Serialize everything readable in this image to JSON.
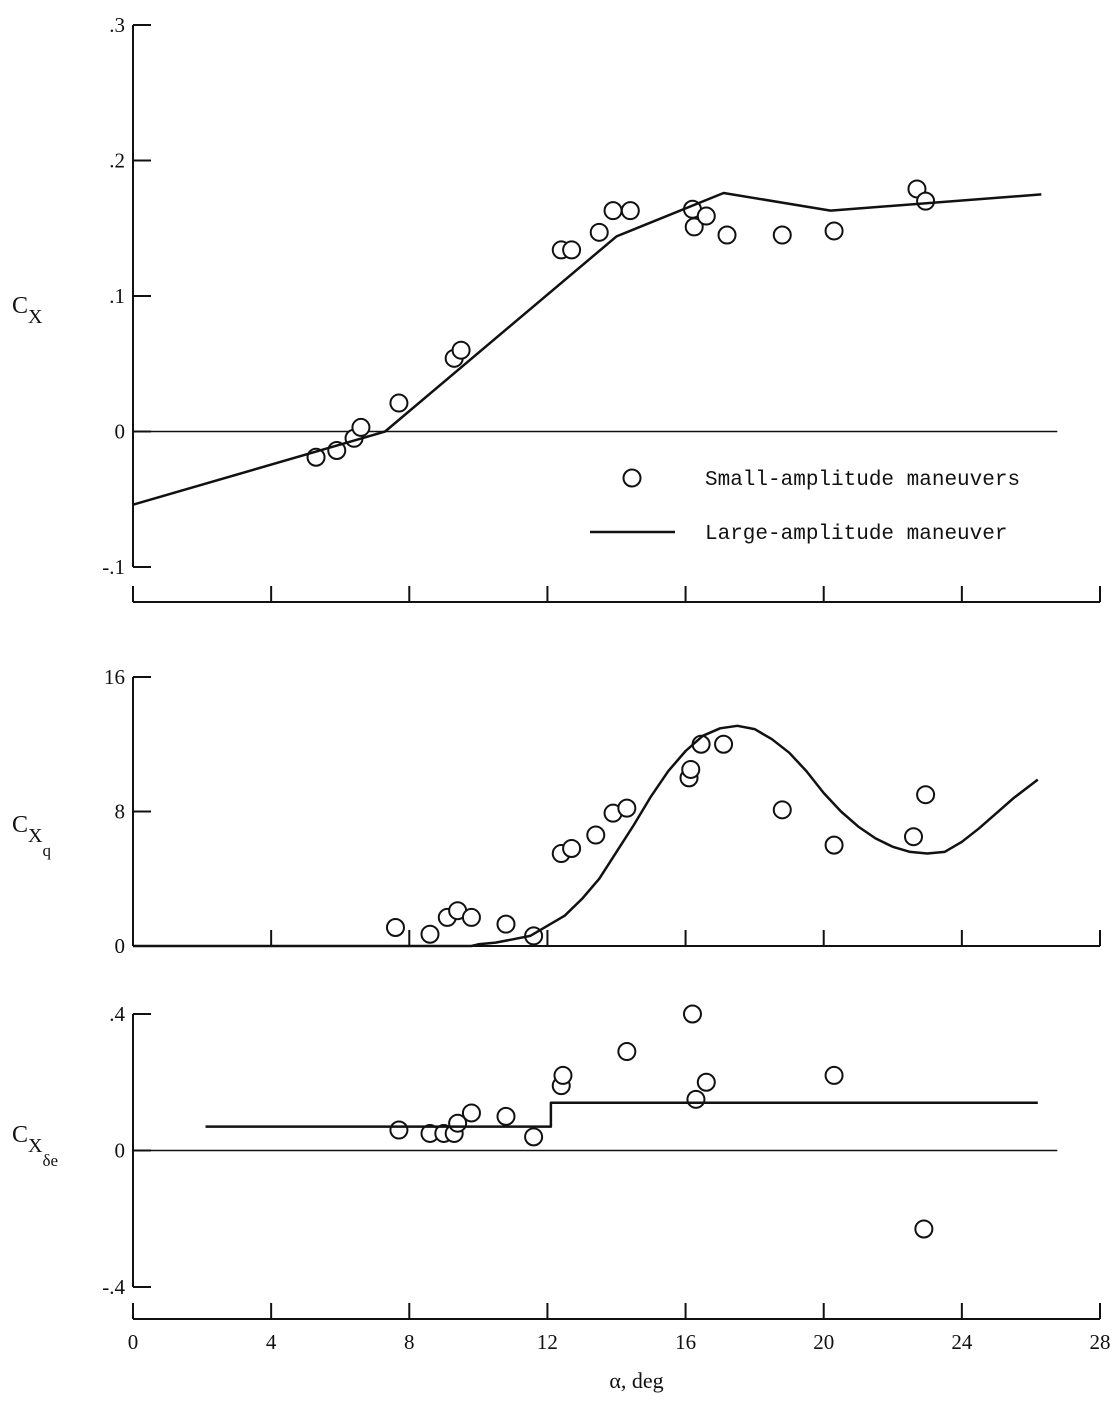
{
  "chart_data": [
    {
      "type": "line",
      "panel": "top",
      "ylabel": "C",
      "ylabel_sub": "X",
      "ylim": [
        -0.1,
        0.3
      ],
      "xlim": [
        0,
        28
      ],
      "yticks": [
        -0.1,
        0,
        0.1,
        0.2,
        0.3
      ],
      "ytick_labels": [
        "-.1",
        "0",
        ".1",
        ".2",
        ".3"
      ],
      "xticks": [
        0,
        4,
        8,
        12,
        16,
        20,
        24,
        28
      ],
      "zero_line": true,
      "legend": {
        "placement": "lower-right",
        "entries": [
          {
            "marker": "circle",
            "label": "Small-amplitude maneuvers"
          },
          {
            "marker": "line",
            "label": "Large-amplitude maneuver"
          }
        ]
      },
      "series": [
        {
          "name": "Small-amplitude maneuvers",
          "kind": "scatter",
          "x": [
            5.3,
            5.9,
            6.4,
            6.6,
            7.7,
            9.3,
            9.5,
            12.4,
            12.7,
            13.5,
            13.9,
            14.4,
            16.2,
            16.25,
            16.6,
            17.2,
            18.8,
            20.3,
            22.7,
            22.95
          ],
          "y": [
            -0.019,
            -0.014,
            -0.005,
            0.003,
            0.021,
            0.054,
            0.06,
            0.134,
            0.134,
            0.147,
            0.163,
            0.163,
            0.164,
            0.151,
            0.159,
            0.145,
            0.145,
            0.148,
            0.179,
            0.17
          ]
        },
        {
          "name": "Large-amplitude maneuver",
          "kind": "line",
          "x": [
            0,
            6.5,
            7.3,
            14.0,
            17.1,
            20.2,
            26.3
          ],
          "y": [
            -0.054,
            -0.006,
            0.0,
            0.144,
            0.176,
            0.163,
            0.175
          ]
        }
      ]
    },
    {
      "type": "line",
      "panel": "middle",
      "ylabel": "C",
      "ylabel_sub": "X",
      "ylabel_subsub": "q",
      "ylim": [
        0,
        16
      ],
      "xlim": [
        0,
        28
      ],
      "yticks": [
        0,
        8,
        16
      ],
      "ytick_labels": [
        "0",
        "8",
        "16"
      ],
      "xticks": [
        0,
        4,
        8,
        12,
        16,
        20,
        24,
        28
      ],
      "series": [
        {
          "name": "Small-amplitude maneuvers",
          "kind": "scatter",
          "x": [
            7.6,
            8.6,
            9.1,
            9.4,
            9.8,
            10.8,
            11.6,
            12.4,
            12.7,
            13.4,
            13.9,
            14.3,
            16.1,
            16.15,
            16.45,
            17.1,
            18.8,
            20.3,
            22.6,
            22.95
          ],
          "y": [
            1.1,
            0.7,
            1.7,
            2.1,
            1.7,
            1.3,
            0.6,
            5.5,
            5.8,
            6.6,
            7.9,
            8.2,
            10.0,
            10.5,
            12.0,
            12.0,
            8.1,
            6.0,
            6.5,
            9.0
          ]
        },
        {
          "name": "Large-amplitude maneuver",
          "kind": "line",
          "x": [
            0,
            9.8,
            10.0,
            10.5,
            11.0,
            11.5,
            12.0,
            12.5,
            13.0,
            13.5,
            14.0,
            14.5,
            15.0,
            15.5,
            16.0,
            16.5,
            17.0,
            17.5,
            18.0,
            18.5,
            19.0,
            19.5,
            20.0,
            20.5,
            21.0,
            21.5,
            22.0,
            22.5,
            23.0,
            23.5,
            24.0,
            24.5,
            25.0,
            25.5,
            26.2
          ],
          "y": [
            0,
            0,
            0.1,
            0.2,
            0.4,
            0.6,
            1.2,
            1.8,
            2.8,
            4.0,
            5.6,
            7.2,
            8.9,
            10.4,
            11.6,
            12.5,
            12.95,
            13.1,
            12.9,
            12.3,
            11.5,
            10.4,
            9.1,
            8.0,
            7.1,
            6.4,
            5.9,
            5.6,
            5.5,
            5.6,
            6.2,
            7.0,
            7.9,
            8.8,
            9.9
          ]
        }
      ]
    },
    {
      "type": "line",
      "panel": "bottom",
      "ylabel": "C",
      "ylabel_sub": "X",
      "ylabel_subsub": "δe",
      "ylim": [
        -0.4,
        0.4
      ],
      "xlim": [
        0,
        28
      ],
      "yticks": [
        -0.4,
        0,
        0.4
      ],
      "ytick_labels": [
        "-.4",
        "0",
        ".4"
      ],
      "xticks": [
        0,
        4,
        8,
        12,
        16,
        20,
        24,
        28
      ],
      "xtick_labels": [
        "0",
        "4",
        "8",
        "12",
        "16",
        "20",
        "24",
        "28"
      ],
      "xlabel": "α, deg",
      "zero_line": true,
      "series": [
        {
          "name": "Small-amplitude maneuvers",
          "kind": "scatter",
          "x": [
            7.7,
            8.6,
            9.0,
            9.3,
            9.4,
            9.8,
            10.8,
            11.6,
            12.4,
            12.45,
            14.3,
            16.2,
            16.3,
            16.6,
            20.3,
            22.9
          ],
          "y": [
            0.06,
            0.05,
            0.05,
            0.05,
            0.08,
            0.11,
            0.1,
            0.04,
            0.19,
            0.22,
            0.29,
            0.4,
            0.15,
            0.2,
            0.22,
            -0.23
          ]
        },
        {
          "name": "Large-amplitude maneuver",
          "kind": "line",
          "x": [
            2.1,
            12.1,
            12.1,
            26.2
          ],
          "y": [
            0.07,
            0.07,
            0.14,
            0.14
          ]
        }
      ]
    }
  ]
}
